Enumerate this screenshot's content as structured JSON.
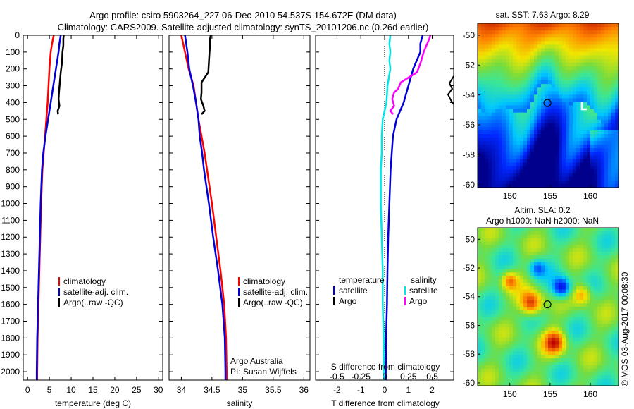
{
  "header": {
    "line1": "Argo profile: csiro 5903264_227 06-Dec-2010 54.537S 154.672E (DM data)",
    "line2": "Climatology: CARS2009. Satellite-adjusted climatology: synTS_20101206.nc (0.26d earlier)"
  },
  "watermark": "©IMOS 03-Aug-2017 00:08:30",
  "colors": {
    "climatology": "#ff0000",
    "satellite": "#0000dd",
    "argo": "#000000",
    "salinity_satellite": "#00e5e5",
    "salinity_argo": "#ff00ff"
  },
  "chart_data": [
    {
      "type": "line",
      "id": "temperature",
      "xlabel": "temperature (deg C)",
      "ylim": [
        2050,
        0
      ],
      "xlim": [
        -1,
        31
      ],
      "xticks": [
        "0",
        "5",
        "10",
        "15",
        "20",
        "25",
        "30"
      ],
      "xtick_values": [
        0,
        5,
        10,
        15,
        20,
        25,
        30
      ],
      "yticks": [
        "0",
        "100",
        "200",
        "300",
        "400",
        "500",
        "600",
        "700",
        "800",
        "900",
        "1000",
        "1100",
        "1200",
        "1300",
        "1400",
        "1500",
        "1600",
        "1700",
        "1800",
        "1900",
        "2000"
      ],
      "ytick_values": [
        0,
        100,
        200,
        300,
        400,
        500,
        600,
        700,
        800,
        900,
        1000,
        1100,
        1200,
        1300,
        1400,
        1500,
        1600,
        1700,
        1800,
        1900,
        2000
      ],
      "legend": [
        "climatology",
        "satellite-adj. clim.",
        "Argo(..raw -QC)"
      ],
      "series": [
        {
          "name": "climatology",
          "color": "#ff0000",
          "depth": [
            0,
            50,
            100,
            200,
            300,
            400,
            500,
            600,
            700,
            800,
            1000,
            1200,
            1400,
            1600,
            1800,
            2000,
            2050
          ],
          "values": [
            6.0,
            5.6,
            5.3,
            5.0,
            4.8,
            4.6,
            4.3,
            4.0,
            3.7,
            3.4,
            3.1,
            2.9,
            2.7,
            2.5,
            2.3,
            2.2,
            2.2
          ]
        },
        {
          "name": "satellite-adj. clim.",
          "color": "#0000dd",
          "depth": [
            0,
            50,
            100,
            200,
            300,
            400,
            500,
            600,
            700,
            800,
            1000,
            1200,
            1400,
            1600,
            1800,
            2000,
            2050
          ],
          "values": [
            7.6,
            7.3,
            7.1,
            6.5,
            5.9,
            5.3,
            4.7,
            4.1,
            3.6,
            3.3,
            3.0,
            2.8,
            2.6,
            2.4,
            2.2,
            2.1,
            2.1
          ]
        },
        {
          "name": "Argo(..raw -QC)",
          "color": "#000000",
          "depth": [
            0,
            20,
            60,
            100,
            160,
            220,
            280,
            340,
            380,
            420,
            450,
            470
          ],
          "values": [
            8.3,
            8.2,
            8.2,
            8.0,
            7.9,
            7.6,
            7.4,
            7.2,
            7.1,
            7.3,
            6.9,
            7.0
          ]
        }
      ]
    },
    {
      "type": "line",
      "id": "salinity",
      "xlabel": "salinity",
      "ylim": [
        2050,
        0
      ],
      "xlim": [
        33.8,
        36.1
      ],
      "xticks": [
        "34",
        "34.5",
        "35",
        "35.5",
        "36"
      ],
      "xtick_values": [
        34,
        34.5,
        35,
        35.5,
        36
      ],
      "legend": [
        "climatology",
        "satellite-adj. clim.",
        "Argo(..raw -QC)"
      ],
      "annotation": [
        "Argo Australia",
        "PI: Susan Wijffels"
      ],
      "series": [
        {
          "name": "climatology",
          "color": "#ff0000",
          "depth": [
            0,
            100,
            200,
            300,
            400,
            500,
            600,
            700,
            800,
            900,
            1000,
            1200,
            1400,
            1600,
            1800,
            2000,
            2050
          ],
          "values": [
            34.0,
            34.06,
            34.12,
            34.2,
            34.24,
            34.28,
            34.33,
            34.38,
            34.42,
            34.46,
            34.5,
            34.57,
            34.64,
            34.7,
            34.73,
            34.74,
            34.74
          ]
        },
        {
          "name": "satellite-adj. clim.",
          "color": "#0000dd",
          "depth": [
            0,
            50,
            100,
            200,
            300,
            400,
            500,
            600,
            700,
            800,
            900,
            1000,
            1200,
            1400,
            1600,
            1800,
            2000,
            2050
          ],
          "values": [
            34.06,
            34.08,
            34.1,
            34.13,
            34.19,
            34.24,
            34.28,
            34.3,
            34.34,
            34.37,
            34.41,
            34.45,
            34.52,
            34.6,
            34.67,
            34.71,
            34.72,
            34.72
          ]
        },
        {
          "name": "Argo(..raw -QC)",
          "color": "#000000",
          "depth": [
            0,
            20,
            60,
            100,
            160,
            220,
            280,
            340,
            380,
            420,
            450,
            470
          ],
          "values": [
            34.48,
            34.47,
            34.47,
            34.46,
            34.45,
            34.44,
            34.33,
            34.33,
            34.32,
            34.36,
            34.38,
            34.33
          ]
        }
      ]
    },
    {
      "type": "line",
      "id": "difference",
      "xlabel": "T difference from climatology",
      "xlabel_top": "S difference from climatology",
      "ylim": [
        2050,
        0
      ],
      "xlim": [
        -2.9,
        2.9
      ],
      "xticks": [
        "-2",
        "-1",
        "0",
        "1",
        "2"
      ],
      "xtick_values": [
        -2,
        -1,
        0,
        1,
        2
      ],
      "xticks_s": [
        "-0.5",
        "-0.25",
        "0",
        "0.25",
        "0.5"
      ],
      "xtick_values_s": [
        -0.5,
        -0.25,
        0,
        0.25,
        0.5
      ],
      "legend": {
        "temperature": "temperature",
        "salinity": "salinity",
        "satellite": "satellite",
        "argo": "Argo"
      },
      "series": [
        {
          "name": "satellite",
          "group": "temperature",
          "color": "#0000dd",
          "depth": [
            0,
            50,
            100,
            150,
            200,
            300,
            400,
            500,
            600,
            700,
            800,
            1000,
            1200,
            1400,
            1600,
            1800,
            2000,
            2050
          ],
          "values": [
            1.6,
            1.5,
            1.5,
            1.35,
            1.2,
            1.0,
            0.8,
            0.5,
            0.35,
            0.3,
            0.25,
            0.2,
            0.15,
            0.12,
            0.1,
            0.06,
            0.05,
            0.05
          ]
        },
        {
          "name": "Argo",
          "group": "temperature",
          "color": "#000000",
          "depth": [],
          "values": []
        },
        {
          "name": "satellite",
          "group": "salinity",
          "color": "#00e5e5",
          "depth": [
            0,
            50,
            100,
            150,
            200,
            300,
            400,
            500,
            600,
            700,
            800,
            1000,
            1200,
            1400,
            1600,
            1800,
            2000,
            2050
          ],
          "values": [
            0.06,
            0.05,
            0.06,
            0.05,
            0.06,
            0.03,
            0.02,
            -0.02,
            -0.03,
            -0.03,
            -0.04,
            -0.04,
            -0.03,
            -0.02,
            -0.02,
            -0.01,
            -0.01,
            -0.01
          ]
        },
        {
          "name": "Argo",
          "group": "salinity",
          "color": "#ff00ff",
          "depth": [
            0,
            20,
            60,
            100,
            160,
            220,
            280,
            320,
            340,
            380,
            420,
            450,
            470
          ],
          "values": [
            0.48,
            0.47,
            0.44,
            0.41,
            0.38,
            0.34,
            0.17,
            0.14,
            0.1,
            0.08,
            0.1,
            0.06,
            0.09
          ]
        }
      ]
    },
    {
      "type": "heatmap",
      "id": "sst_map",
      "title": "sat. SST: 7.63 Argo: 8.29",
      "xticks": [
        "150",
        "155",
        "160"
      ],
      "xtick_values": [
        150,
        155,
        160
      ],
      "yticks": [
        "-50",
        "-52",
        "-54",
        "-56",
        "-58",
        "-60"
      ],
      "ytick_values": [
        -50,
        -52,
        -54,
        -56,
        -58,
        -60
      ],
      "xlim": [
        146,
        163.5
      ],
      "ylim": [
        -60.2,
        -49.2
      ],
      "marker": {
        "lon": 154.672,
        "lat": -54.537
      }
    },
    {
      "type": "heatmap",
      "id": "sla_map",
      "title": [
        "Altim. SLA: 0.2",
        "Argo h1000: NaN h2000: NaN"
      ],
      "xticks": [
        "150",
        "155",
        "160"
      ],
      "xtick_values": [
        150,
        155,
        160
      ],
      "yticks": [
        "-50",
        "-52",
        "-54",
        "-56",
        "-58",
        "-60"
      ],
      "ytick_values": [
        -50,
        -52,
        -54,
        -56,
        -58,
        -60
      ],
      "xlim": [
        146,
        163.5
      ],
      "ylim": [
        -60.2,
        -49.2
      ],
      "marker": {
        "lon": 154.672,
        "lat": -54.537
      }
    }
  ]
}
